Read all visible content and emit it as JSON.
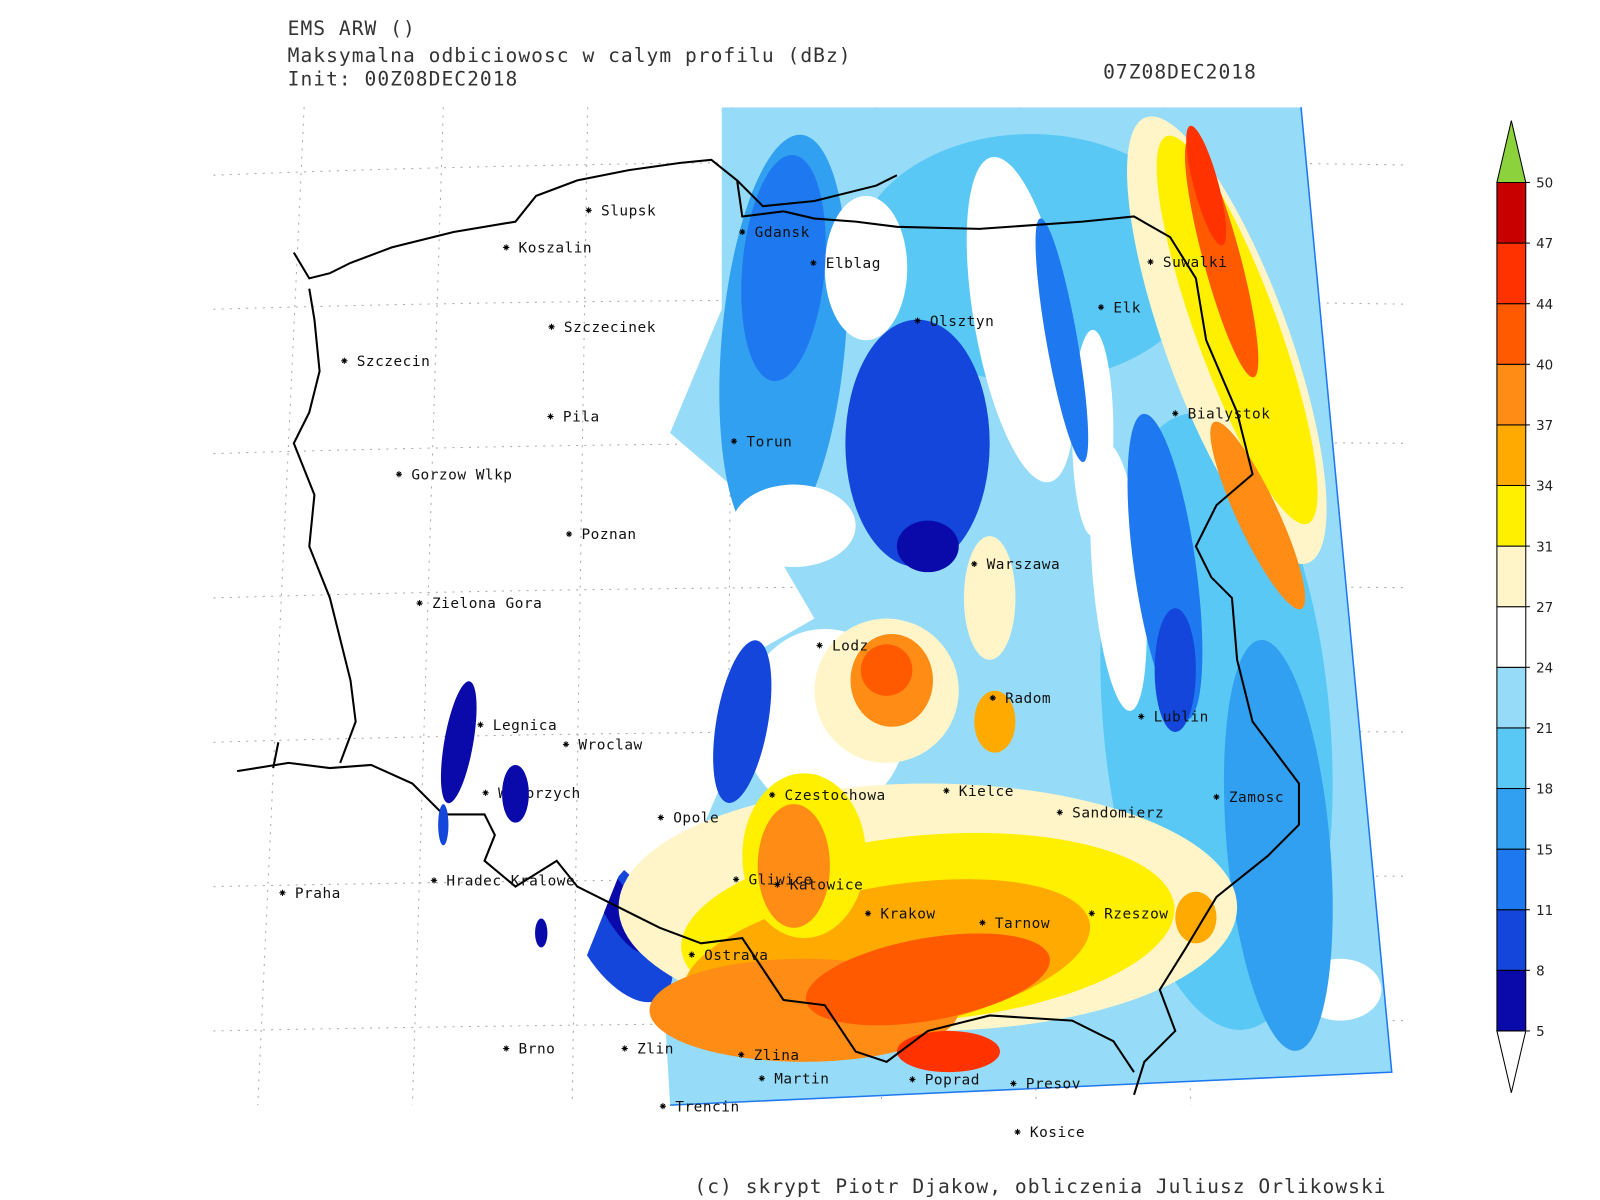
{
  "header": {
    "model": "EMS ARW ()",
    "title": "Maksymalna odbiciowosc w calym profilu (dBz)",
    "init": "Init: 00Z08DEC2018",
    "valid": "07Z08DEC2018"
  },
  "cities": [
    "Slupsk",
    "Koszalin",
    "Gdansk",
    "Elblag",
    "Suwalki",
    "Elk",
    "Olsztyn",
    "Szczecinek",
    "Szczecin",
    "Bialystok",
    "Pila",
    "Torun",
    "Gorzow Wlkp",
    "Poznan",
    "Warszawa",
    "Zielona Gora",
    "Lodz",
    "Radom",
    "Lublin",
    "Legnica",
    "Wroclaw",
    "Walbrzych",
    "Czestochowa",
    "Kielce",
    "Zamosc",
    "Sandomierz",
    "Opole",
    "Hradec Kralowe",
    "Gliwice",
    "Katowice",
    "Praha",
    "Krakow",
    "Rzeszow",
    "Tarnow",
    "Ostrava",
    "Brno",
    "Zlin",
    "Zlina",
    "Martin",
    "Poprad",
    "Presov",
    "Trencin",
    "Kosice"
  ],
  "colorbar": {
    "levels": [
      5,
      8,
      11,
      15,
      18,
      21,
      24,
      27,
      31,
      34,
      37,
      40,
      44,
      47,
      50
    ],
    "colors": [
      "#0a0aaa",
      "#1446dc",
      "#1e78f0",
      "#32a0f0",
      "#5ac8f5",
      "#96dcf8",
      "#ffffff",
      "#fff5c8",
      "#fff000",
      "#ffaa00",
      "#ff8c14",
      "#ff5a00",
      "#ff3200",
      "#c80000"
    ],
    "over_color": "#8cd23c",
    "under_color": "#ffffff"
  },
  "footer": "(c) skrypt Piotr Djakow, obliczenia Juliusz Orlikowski"
}
